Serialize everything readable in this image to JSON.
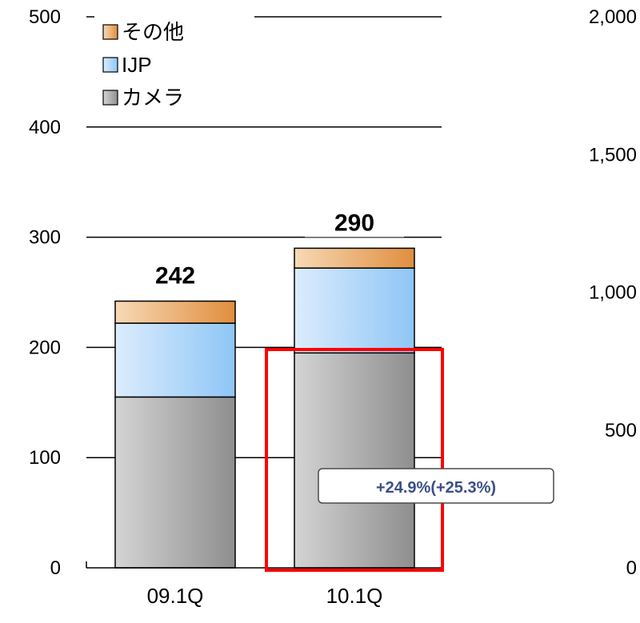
{
  "chart_data": {
    "type": "bar",
    "stacked": true,
    "categories": [
      "09.1Q",
      "10.1Q"
    ],
    "series": [
      {
        "name": "カメラ",
        "values": [
          155,
          195
        ],
        "color": "#a6a6a6"
      },
      {
        "name": "IJP",
        "values": [
          67,
          77
        ],
        "color": "#a9d2f7"
      },
      {
        "name": "その他",
        "values": [
          20,
          18
        ],
        "color": "#e9a869"
      }
    ],
    "totals": [
      "242",
      "290"
    ],
    "ylim": [
      0,
      500
    ],
    "yticks": [
      "0",
      "100",
      "200",
      "300",
      "400",
      "500"
    ],
    "y2lim": [
      0,
      2000
    ],
    "y2ticks": [
      "0",
      "500",
      "1,000",
      "1,500",
      "2,000"
    ],
    "legend_order": [
      "その他",
      "IJP",
      "カメラ"
    ],
    "legend_position": "top-left",
    "grid": true,
    "annotation": "+24.9%(+25.3%)",
    "highlight_category": "10.1Q",
    "highlight_color": "#ff0000"
  }
}
